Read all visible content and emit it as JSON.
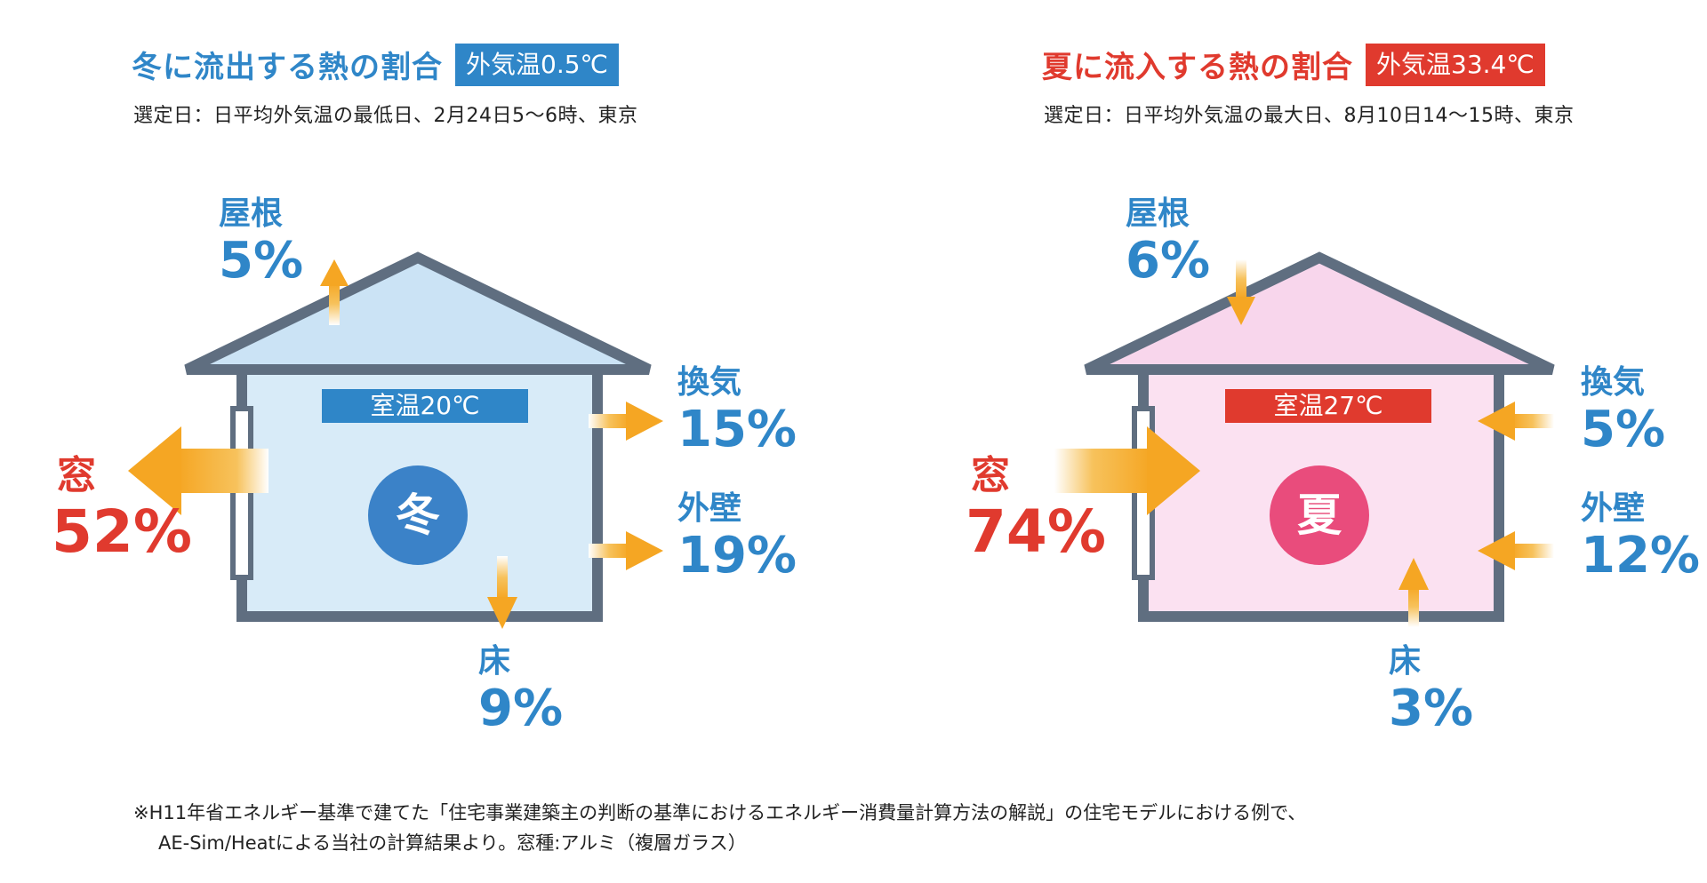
{
  "winter": {
    "title": "冬に流出する熱の割合",
    "badge": "外気温0.5℃",
    "subtitle": "選定日：日平均外気温の最低日、2月24日5～6時、東京",
    "room_temp": "室温20℃",
    "season": "冬",
    "colors": {
      "accent": "#2f86c8",
      "house_fill": "#d8ebf8",
      "roof_fill": "#cbe3f5",
      "circle": "#3b82c8",
      "window_label": "#e03a2e"
    },
    "parts": {
      "roof": {
        "label": "屋根",
        "value": "5%"
      },
      "ventilation": {
        "label": "換気",
        "value": "15%"
      },
      "wall": {
        "label": "外壁",
        "value": "19%"
      },
      "floor": {
        "label": "床",
        "value": "9%"
      },
      "window": {
        "label": "窓",
        "value": "52%"
      }
    }
  },
  "summer": {
    "title": "夏に流入する熱の割合",
    "badge": "外気温33.4℃",
    "subtitle": "選定日：日平均外気温の最大日、8月10日14～15時、東京",
    "room_temp": "室温27℃",
    "season": "夏",
    "colors": {
      "accent": "#e03a2e",
      "house_fill": "#fbe1f1",
      "roof_fill": "#f8d6ec",
      "circle": "#e94c7c",
      "window_label": "#e03a2e"
    },
    "parts": {
      "roof": {
        "label": "屋根",
        "value": "6%"
      },
      "ventilation": {
        "label": "換気",
        "value": "5%"
      },
      "wall": {
        "label": "外壁",
        "value": "12%"
      },
      "floor": {
        "label": "床",
        "value": "3%"
      },
      "window": {
        "label": "窓",
        "value": "74%"
      }
    }
  },
  "footnote": {
    "line1": "※H11年省エネルギー基準で建てた「住宅事業建築主の判断の基準におけるエネルギー消費量計算方法の解説」の住宅モデルにおける例で、",
    "line2": "AE-Sim/Heatによる当社の計算結果より。窓種:アルミ（複層ガラス）"
  },
  "label_color": "#2f86c8",
  "arrow_color": "#f5a623",
  "outline_color": "#5f6e80"
}
